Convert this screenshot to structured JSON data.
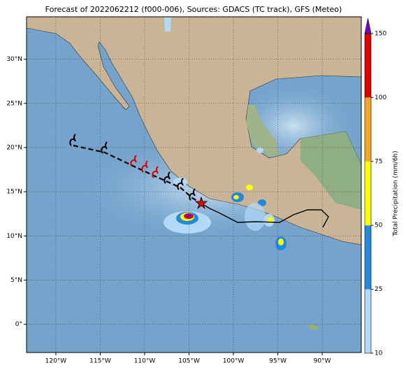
{
  "title": "Forecast of 2022062212 (f000-006), Sources: GDACS (TC track), GFS (Meteo)",
  "map": {
    "xlim": [
      -123.3,
      -85.6
    ],
    "ylim": [
      -3.2,
      34.8
    ],
    "xticks": [
      {
        "value": -120,
        "label": "120°W"
      },
      {
        "value": -115,
        "label": "115°W"
      },
      {
        "value": -110,
        "label": "110°W"
      },
      {
        "value": -105,
        "label": "105°W"
      },
      {
        "value": -100,
        "label": "100°W"
      },
      {
        "value": -95,
        "label": "95°W"
      },
      {
        "value": -90,
        "label": "90°W"
      }
    ],
    "yticks": [
      {
        "value": 0,
        "label": "0°"
      },
      {
        "value": 5,
        "label": "5°N"
      },
      {
        "value": 10,
        "label": "10°N"
      },
      {
        "value": 15,
        "label": "15°N"
      },
      {
        "value": 20,
        "label": "20°N"
      },
      {
        "value": 25,
        "label": "25°N"
      },
      {
        "value": 30,
        "label": "30°N"
      }
    ],
    "grid": true
  },
  "colorbar": {
    "label": "Total Precipitation (mm/6h)",
    "ticks": [
      10,
      25,
      50,
      75,
      100,
      150
    ],
    "colors": [
      "#b3d9f7",
      "#1f8ae0",
      "#ffff00",
      "#f5a623",
      "#e00000"
    ],
    "extend_color": "#7a00c8"
  }
}
